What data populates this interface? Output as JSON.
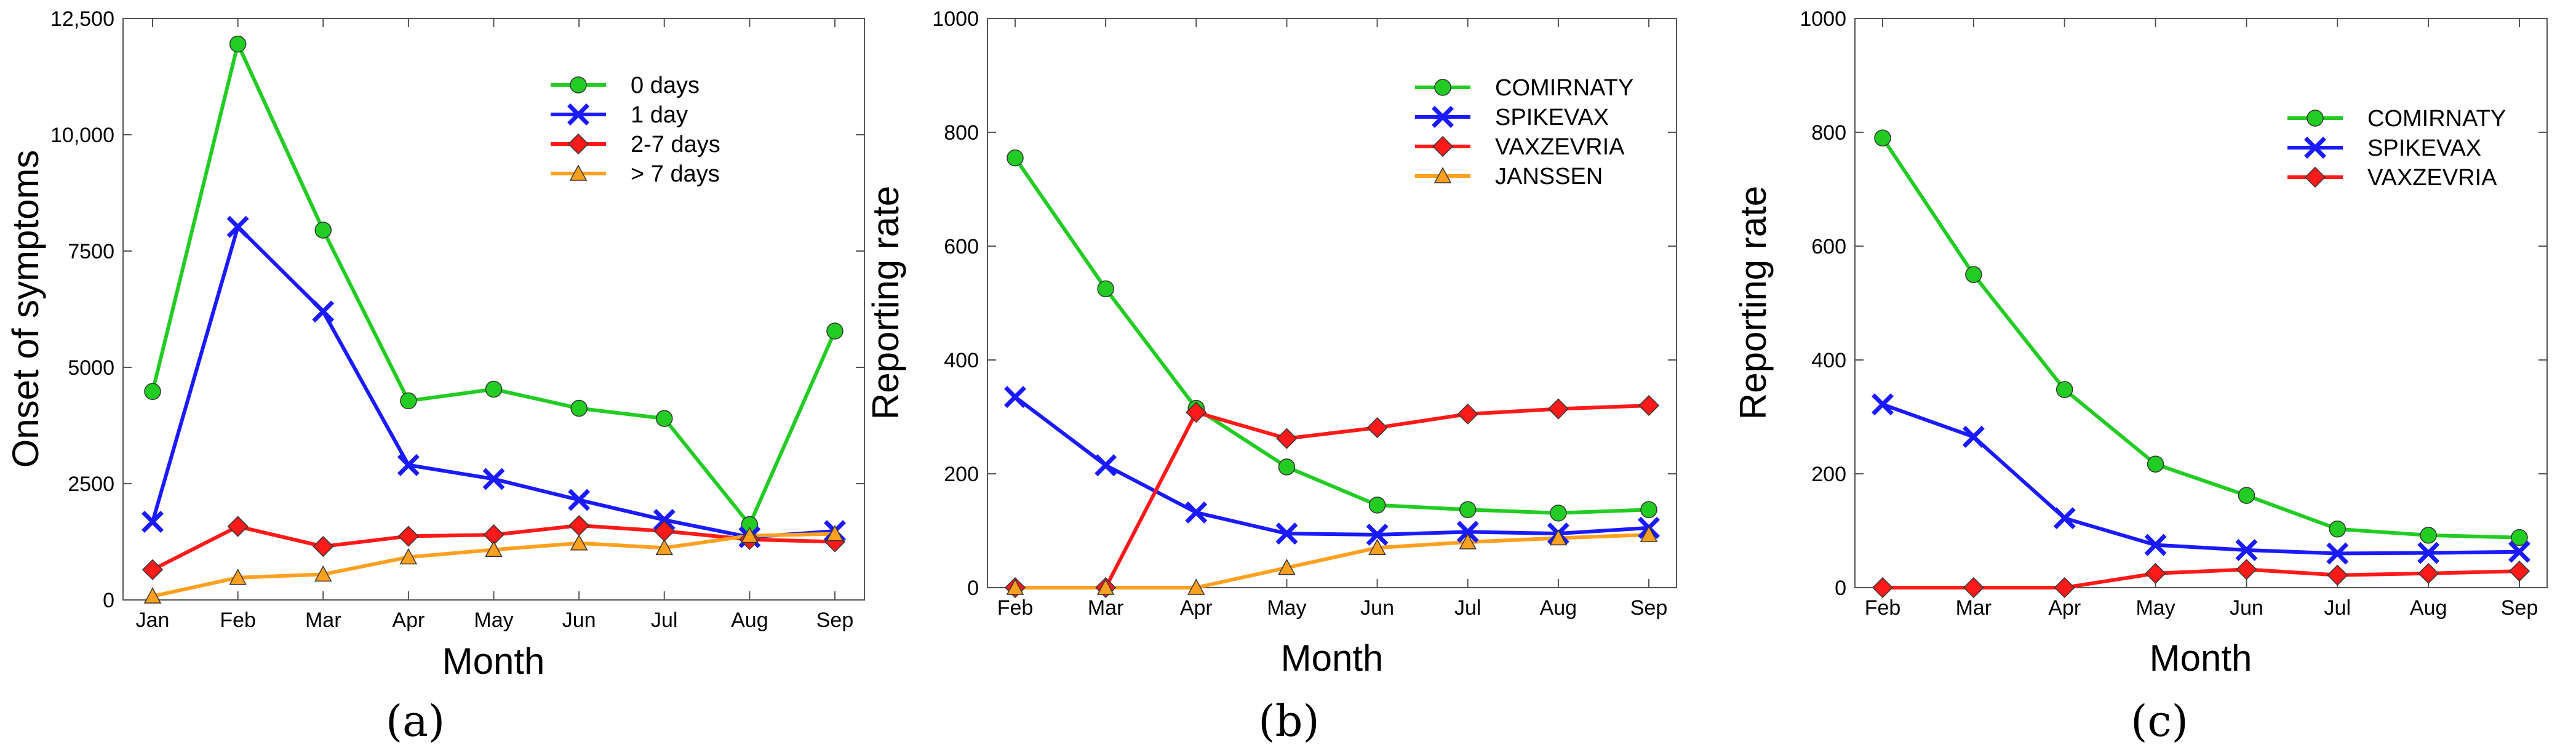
{
  "chart_data": [
    {
      "type": "line",
      "panel_label": "(a)",
      "xlabel": "Month",
      "ylabel": "Onset of symptoms",
      "categories": [
        "Jan",
        "Feb",
        "Mar",
        "Apr",
        "May",
        "Jun",
        "Jul",
        "Aug",
        "Sep"
      ],
      "ylim": [
        0,
        12500
      ],
      "yticks": [
        0,
        2500,
        5000,
        7500,
        10000,
        12500
      ],
      "ytick_labels": [
        "0",
        "2500",
        "5000",
        "7500",
        "10,000",
        "12,500"
      ],
      "legend_position": "top-right",
      "series": [
        {
          "name": "0 days",
          "color": "#22cc22",
          "marker": "circle",
          "values": [
            4480,
            11950,
            7950,
            4280,
            4530,
            4120,
            3900,
            1620,
            5780
          ]
        },
        {
          "name": "1 day",
          "color": "#1a1aff",
          "marker": "x",
          "values": [
            1680,
            8020,
            6200,
            2900,
            2600,
            2150,
            1720,
            1350,
            1480
          ]
        },
        {
          "name": "2-7 days",
          "color": "#ff1a1a",
          "marker": "diamond",
          "values": [
            650,
            1580,
            1150,
            1370,
            1400,
            1600,
            1480,
            1300,
            1250
          ]
        },
        {
          "name": "> 7 days",
          "color": "#ffa020",
          "marker": "triangle",
          "values": [
            80,
            480,
            550,
            920,
            1080,
            1220,
            1120,
            1380,
            1420
          ]
        }
      ]
    },
    {
      "type": "line",
      "panel_label": "(b)",
      "xlabel": "Month",
      "ylabel": "Reporting rate",
      "categories": [
        "Feb",
        "Mar",
        "Apr",
        "May",
        "Jun",
        "Jul",
        "Aug",
        "Sep"
      ],
      "ylim": [
        0,
        1000
      ],
      "yticks": [
        0,
        200,
        400,
        600,
        800,
        1000
      ],
      "ytick_labels": [
        "0",
        "200",
        "400",
        "600",
        "800",
        "1000"
      ],
      "legend_position": "top-right",
      "series": [
        {
          "name": "COMIRNATY",
          "color": "#22cc22",
          "marker": "circle",
          "values": [
            755,
            525,
            315,
            212,
            145,
            137,
            131,
            137
          ]
        },
        {
          "name": "SPIKEVAX",
          "color": "#1a1aff",
          "marker": "x",
          "values": [
            335,
            215,
            132,
            95,
            93,
            98,
            95,
            105
          ]
        },
        {
          "name": "VAXZEVRIA",
          "color": "#ff1a1a",
          "marker": "diamond",
          "values": [
            0,
            0,
            308,
            262,
            281,
            305,
            314,
            320
          ]
        },
        {
          "name": "JANSSEN",
          "color": "#ffa020",
          "marker": "triangle",
          "values": [
            0,
            0,
            0,
            35,
            70,
            80,
            87,
            93
          ]
        }
      ]
    },
    {
      "type": "line",
      "panel_label": "(c)",
      "xlabel": "Month",
      "ylabel": "Reporting rate",
      "categories": [
        "Feb",
        "Mar",
        "Apr",
        "May",
        "Jun",
        "Jul",
        "Aug",
        "Sep"
      ],
      "ylim": [
        0,
        1000
      ],
      "yticks": [
        0,
        200,
        400,
        600,
        800,
        1000
      ],
      "ytick_labels": [
        "0",
        "200",
        "400",
        "600",
        "800",
        "1000"
      ],
      "legend_position": "top-right",
      "series": [
        {
          "name": "COMIRNATY",
          "color": "#22cc22",
          "marker": "circle",
          "values": [
            790,
            550,
            348,
            217,
            162,
            103,
            92,
            88
          ]
        },
        {
          "name": "SPIKEVAX",
          "color": "#1a1aff",
          "marker": "x",
          "values": [
            322,
            265,
            122,
            75,
            66,
            60,
            61,
            63
          ]
        },
        {
          "name": "VAXZEVRIA",
          "color": "#ff1a1a",
          "marker": "diamond",
          "values": [
            0,
            0,
            0,
            25,
            32,
            22,
            25,
            29
          ]
        }
      ]
    }
  ]
}
